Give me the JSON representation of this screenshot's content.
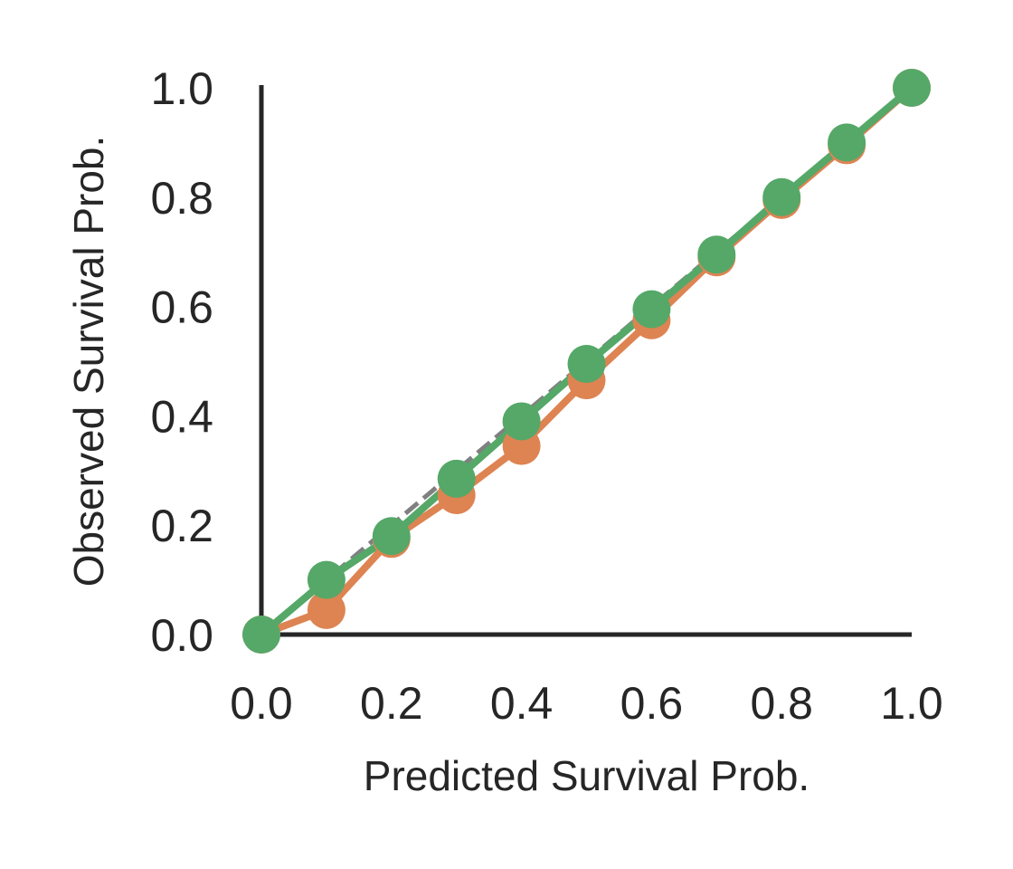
{
  "chart_data": {
    "type": "line",
    "title": "",
    "xlabel": "Predicted Survival Prob.",
    "ylabel": "Observed Survival Prob.",
    "xlim": [
      0,
      1
    ],
    "ylim": [
      0,
      1
    ],
    "x_ticks": [
      "0.0",
      "0.2",
      "0.4",
      "0.6",
      "0.8",
      "1.0"
    ],
    "y_ticks": [
      "0.0",
      "0.2",
      "0.4",
      "0.6",
      "0.8",
      "1.0"
    ],
    "grid": false,
    "legend": "none",
    "reference_line": {
      "style": "dashed",
      "color": "#808080",
      "points": [
        [
          0,
          0
        ],
        [
          1,
          1
        ]
      ]
    },
    "series": [
      {
        "color": "#dd8452",
        "x": [
          0.0,
          0.1,
          0.2,
          0.3,
          0.4,
          0.5,
          0.6,
          0.7,
          0.8,
          0.9,
          1.0
        ],
        "y": [
          0.0,
          0.045,
          0.175,
          0.255,
          0.345,
          0.465,
          0.575,
          0.69,
          0.795,
          0.895,
          1.0
        ]
      },
      {
        "color": "#55a868",
        "x": [
          0.0,
          0.1,
          0.2,
          0.3,
          0.4,
          0.5,
          0.6,
          0.7,
          0.8,
          0.9,
          1.0
        ],
        "y": [
          0.0,
          0.1,
          0.18,
          0.285,
          0.39,
          0.495,
          0.595,
          0.695,
          0.8,
          0.9,
          1.0
        ]
      }
    ]
  }
}
